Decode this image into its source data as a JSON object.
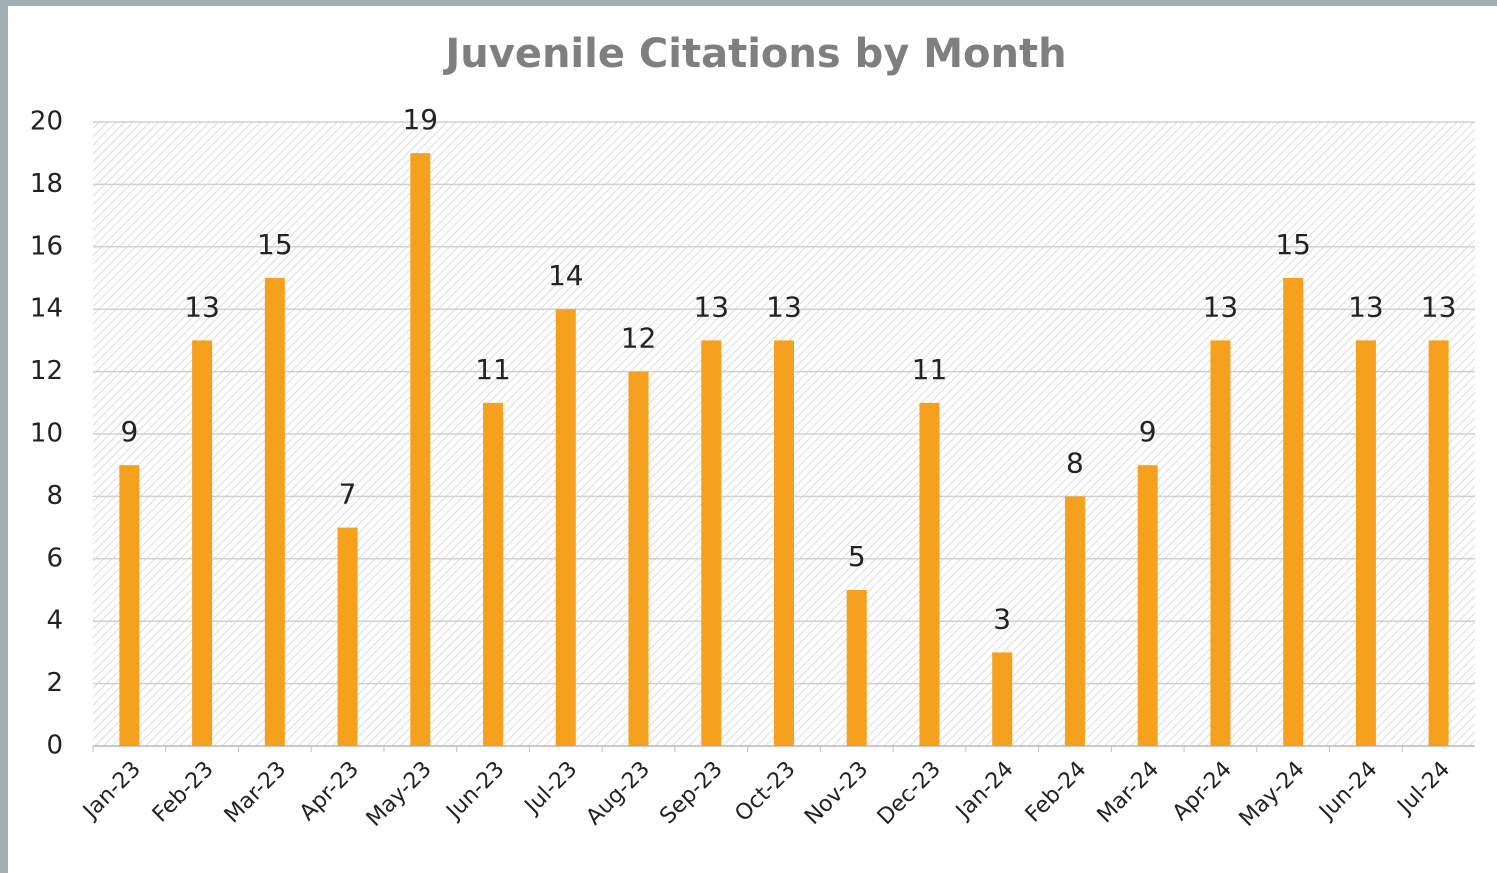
{
  "chart_data": {
    "type": "bar",
    "title": "Juvenile Citations by Month",
    "categories": [
      "Jan-23",
      "Feb-23",
      "Mar-23",
      "Apr-23",
      "May-23",
      "Jun-23",
      "Jul-23",
      "Aug-23",
      "Sep-23",
      "Oct-23",
      "Nov-23",
      "Dec-23",
      "Jan-24",
      "Feb-24",
      "Mar-24",
      "Apr-24",
      "May-24",
      "Jun-24",
      "Jul-24"
    ],
    "values": [
      9,
      13,
      15,
      7,
      19,
      11,
      14,
      12,
      13,
      13,
      5,
      11,
      3,
      8,
      9,
      13,
      15,
      13,
      13
    ],
    "color": "#f5a11e",
    "ylim": [
      0,
      20
    ],
    "yticks": [
      0,
      2,
      4,
      6,
      8,
      10,
      12,
      14,
      16,
      18,
      20
    ],
    "grid": true
  }
}
